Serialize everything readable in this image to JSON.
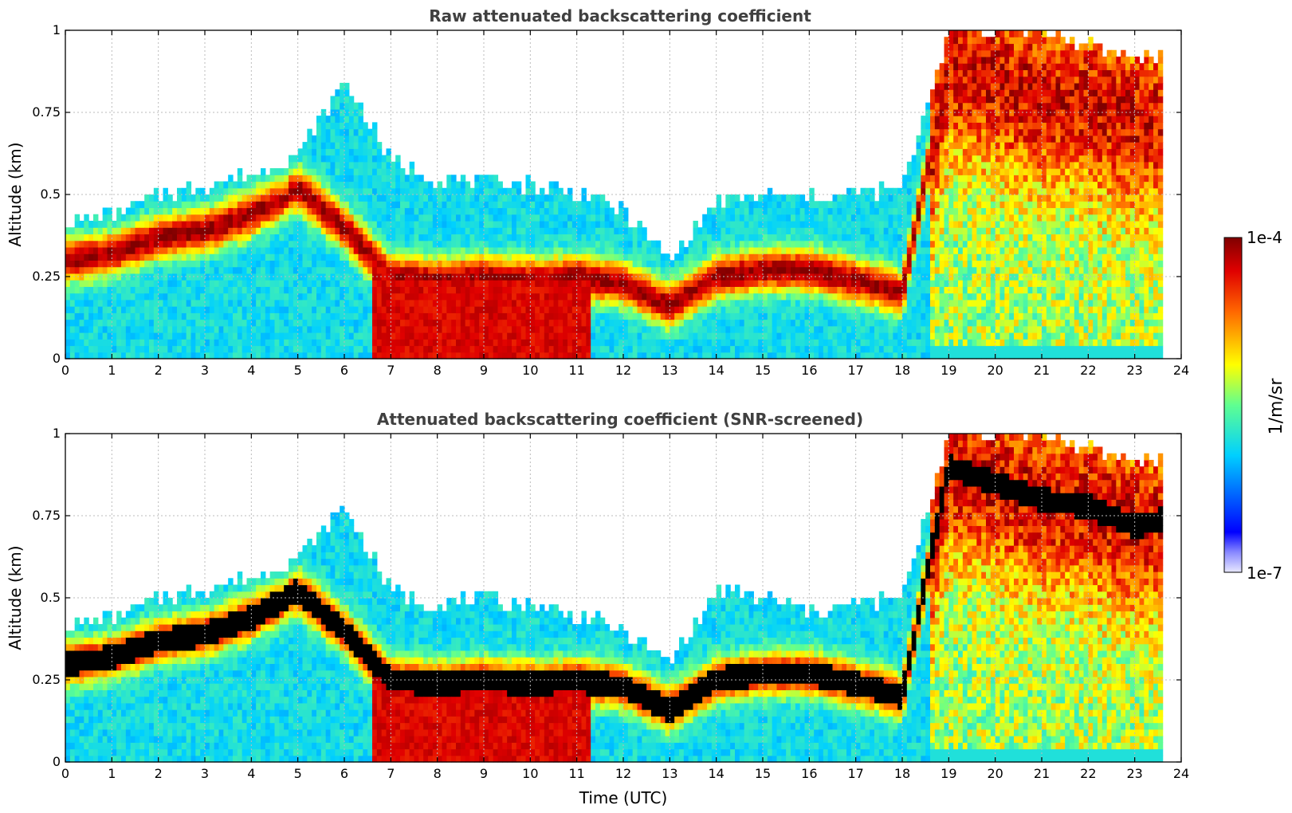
{
  "chart_data": [
    {
      "type": "heatmap",
      "title": "Raw attenuated backscattering coefficient",
      "xlabel": "",
      "ylabel": "Altitude (km)",
      "xlim": [
        0,
        24
      ],
      "ylim": [
        0,
        1
      ],
      "x_ticks": [
        "0",
        "1",
        "2",
        "3",
        "4",
        "5",
        "6",
        "7",
        "8",
        "9",
        "10",
        "11",
        "12",
        "13",
        "14",
        "15",
        "16",
        "17",
        "18",
        "19",
        "20",
        "21",
        "22",
        "23",
        "24"
      ],
      "y_ticks": [
        "0",
        "0.25",
        "0.5",
        "0.75",
        "1"
      ],
      "grid": true,
      "data_end_time": 23.6,
      "screened": false,
      "layer_top_km": [
        0.42,
        0.44,
        0.5,
        0.53,
        0.56,
        0.62,
        0.85,
        0.6,
        0.55,
        0.54,
        0.53,
        0.51,
        0.45,
        0.3,
        0.48,
        0.5,
        0.49,
        0.5,
        0.52,
        1.0,
        1.0,
        1.0,
        0.95,
        0.92,
        0.93
      ],
      "layer_center_km": [
        0.3,
        0.32,
        0.37,
        0.39,
        0.44,
        0.52,
        0.4,
        0.25,
        0.24,
        0.25,
        0.24,
        0.25,
        0.23,
        0.16,
        0.25,
        0.27,
        0.27,
        0.24,
        0.2,
        0.9,
        0.85,
        0.8,
        0.78,
        0.72,
        0.75
      ]
    },
    {
      "type": "heatmap",
      "title": "Attenuated backscattering coefficient (SNR-screened)",
      "xlabel": "Time (UTC)",
      "ylabel": "Altitude (km)",
      "xlim": [
        0,
        24
      ],
      "ylim": [
        0,
        1
      ],
      "x_ticks": [
        "0",
        "1",
        "2",
        "3",
        "4",
        "5",
        "6",
        "7",
        "8",
        "9",
        "10",
        "11",
        "12",
        "13",
        "14",
        "15",
        "16",
        "17",
        "18",
        "19",
        "20",
        "21",
        "22",
        "23",
        "24"
      ],
      "y_ticks": [
        "0",
        "0.25",
        "0.5",
        "0.75",
        "1"
      ],
      "grid": true,
      "data_end_time": 23.6,
      "screened": true,
      "layer_top_km": [
        0.42,
        0.44,
        0.5,
        0.53,
        0.56,
        0.62,
        0.78,
        0.52,
        0.48,
        0.5,
        0.48,
        0.45,
        0.4,
        0.3,
        0.52,
        0.5,
        0.46,
        0.48,
        0.5,
        1.0,
        1.0,
        1.0,
        0.95,
        0.92,
        0.93
      ],
      "layer_center_km": [
        0.3,
        0.32,
        0.37,
        0.39,
        0.44,
        0.52,
        0.4,
        0.25,
        0.24,
        0.25,
        0.24,
        0.25,
        0.23,
        0.16,
        0.25,
        0.27,
        0.27,
        0.24,
        0.2,
        0.9,
        0.85,
        0.8,
        0.78,
        0.72,
        0.75
      ]
    }
  ],
  "colorbar": {
    "label": "1/m/sr",
    "min_label": "1e-7",
    "max_label": "1e-4",
    "colormap": "jet"
  }
}
